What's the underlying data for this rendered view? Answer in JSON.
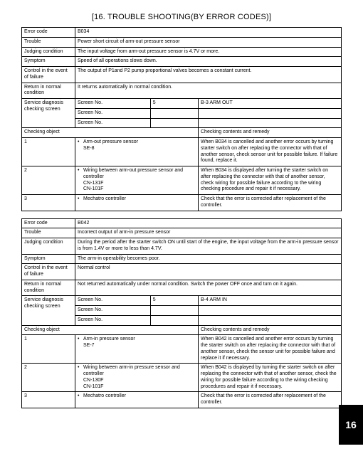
{
  "header": "[16.   TROUBLE SHOOTING(BY ERROR CODES)]",
  "page_tab": "16",
  "labels": {
    "error_code": "Error code",
    "trouble": "Trouble",
    "judging": "Judging condition",
    "symptom": "Symptom",
    "control": "Control in the event of failure",
    "return": "Return in normal condition",
    "service": "Service diagnosis checking screen",
    "screen": "Screen No.",
    "checking_object": "Checking object",
    "checking_remedy": "Checking contents and remedy"
  },
  "t1": {
    "error_code": "B034",
    "trouble": "Power short circuit of arm-out pressure sensor",
    "judging": "The input voltage from arm-out pressure sensor is 4.7V or more.",
    "symptom": "Speed of all operations slows down.",
    "control": "The output of P1and P2 pump proportional valves becomes a constant current.",
    "return": "It returns automatically in normal condition.",
    "screen1_num": "5",
    "screen1_val": "B-3 ARM OUT",
    "checks": [
      {
        "n": "1",
        "obj": "Arm-out pressure sensor",
        "obj2": "SE-8",
        "rem": "When B034 is cancelled and another error occurs by turning starter switch on after replacing the connector with that of another sensor, check sensor unit for possible failure. If failure found, replace it."
      },
      {
        "n": "2",
        "obj": "Wiring between arm-out pressure sensor and controller",
        "obj2": "CN-131F",
        "obj3": "CN-101F",
        "rem": "When B034 is displayed after turning the starter switch on after replacing the connector with that of another sensor, check wiring for possible failure according to the wiring checking procedure and repair it if necessary."
      },
      {
        "n": "3",
        "obj": "Mechatro controller",
        "rem": "Check that the error is corrected after replacement of the controller."
      }
    ]
  },
  "t2": {
    "error_code": "B042",
    "trouble": "Incorrect output of arm-in pressure sensor",
    "judging": "During the period after the starter switch ON until start of the engine, the input voltage from the arm-in pressure sensor is from 1.4V or more to less than 4.7V.",
    "symptom": "The arm-in operability becomes poor.",
    "control": "Normal control",
    "return": "Not returned automatically under normal condition. Switch the power OFF once and turn on it again.",
    "screen1_num": "5",
    "screen1_val": "B-4 ARM IN",
    "checks": [
      {
        "n": "1",
        "obj": "Arm-in pressure sensor",
        "obj2": "SE-7",
        "rem": "When B042 is cancelled and another error occurs by turning the starter switch on after replacing the connector with that of another sensor, check the sensor unit for possible failure and replace it if necessary."
      },
      {
        "n": "2",
        "obj": "Wiring between arm-in pressure sensor and controller",
        "obj2": "CN-130F",
        "obj3": "CN-101F",
        "rem": "When B042 is displayed by turning the starter switch on after replacing the connector with that of another sensor, check the wiring for possible failure according to the wiring checking procedures and repair it if necessary."
      },
      {
        "n": "3",
        "obj": "Mechatro controller",
        "rem": "Check that the error is corrected after replacement of the controller."
      }
    ]
  }
}
